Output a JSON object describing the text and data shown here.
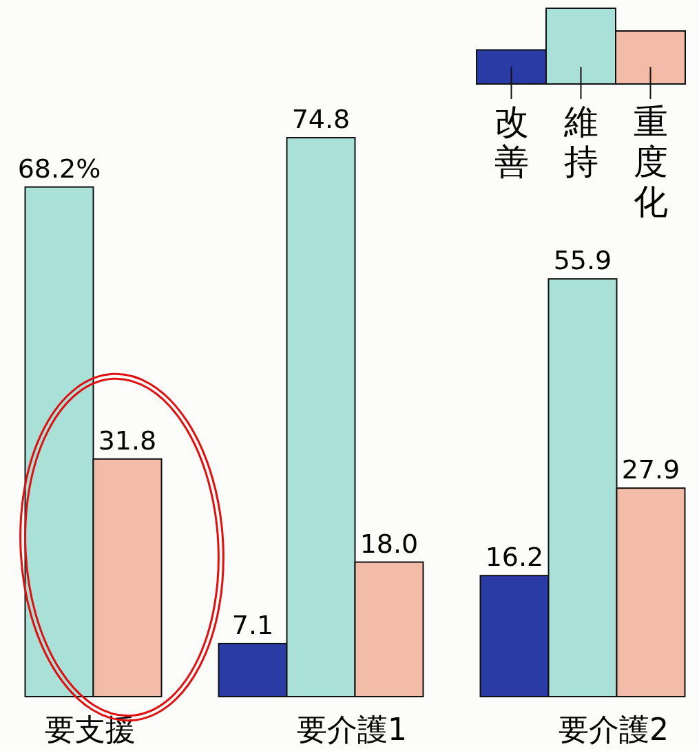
{
  "chart_data": {
    "type": "bar",
    "categories": [
      "要支援",
      "要介護1",
      "要介護2"
    ],
    "series": [
      {
        "name": "改善",
        "color": "#2b3ba6",
        "values": [
          null,
          7.1,
          16.2
        ],
        "value_labels": [
          null,
          "7.1",
          "16.2"
        ]
      },
      {
        "name": "維持",
        "color": "#a9e1d9",
        "values": [
          68.2,
          74.8,
          55.9
        ],
        "value_labels": [
          "68.2%",
          "74.8",
          "55.9"
        ]
      },
      {
        "name": "重度化",
        "color": "#f2bca9",
        "values": [
          31.8,
          18.0,
          27.9
        ],
        "value_labels": [
          "31.8",
          "18.0",
          "27.9"
        ]
      }
    ],
    "legend": "top right"
  }
}
